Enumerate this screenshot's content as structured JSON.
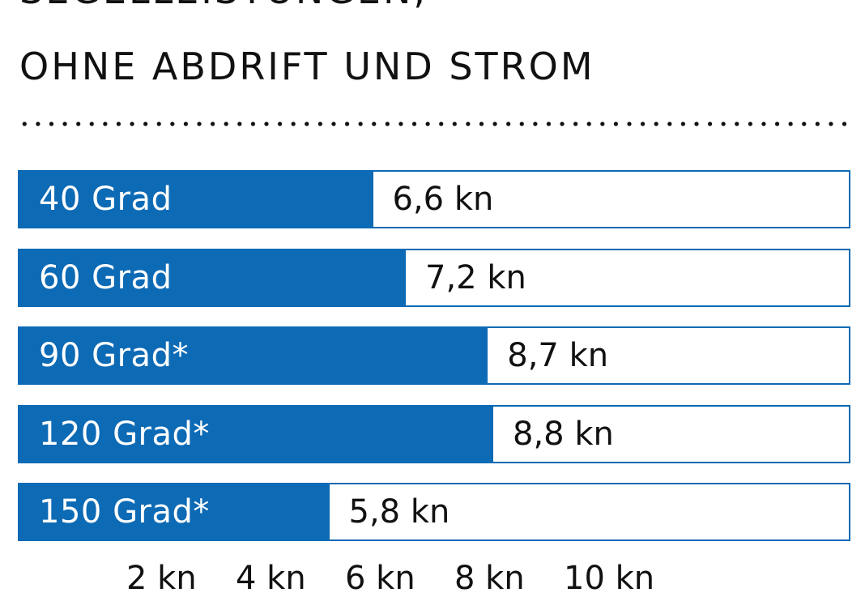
{
  "chart_data": {
    "type": "bar",
    "orientation": "horizontal",
    "title_line_1": "SEGELLEISTUNGEN,",
    "title_line_2": "OHNE ABDRIFT UND STROM",
    "categories": [
      "40 Grad",
      "60 Grad",
      "90 Grad*",
      "120 Grad*",
      "150 Grad*"
    ],
    "values": [
      6.6,
      7.2,
      8.7,
      8.8,
      5.8
    ],
    "value_labels": [
      "6,6 kn",
      "7,2 kn",
      "8,7 kn",
      "8,8 kn",
      "5,8 kn"
    ],
    "unit": "kn",
    "x_tick_labels": [
      "2 kn",
      "4 kn",
      "6 kn",
      "8 kn",
      "10 kn"
    ],
    "xlim": [
      2,
      10
    ],
    "bar_color": "#0d6ab5",
    "grid": false,
    "legend": "none"
  }
}
